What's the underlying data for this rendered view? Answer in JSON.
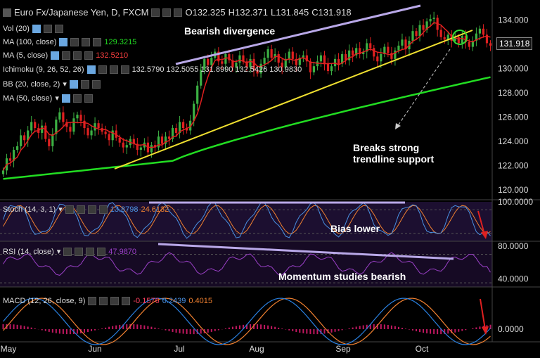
{
  "header": {
    "symbol": "Euro Fx/Japanese Yen, D, FXCM",
    "open": "O132.325",
    "high": "H132.371",
    "low": "L131.845",
    "close": "C131.918"
  },
  "legends": {
    "vol": "Vol (20)",
    "ma100": "MA (100, close)",
    "ma100_val": "129.3215",
    "ma5": "MA (5, close)",
    "ma5_val": "132.5210",
    "ichimoku": "Ichimoku (9, 26, 52, 26)",
    "ichimoku_vals": "132.5790 132.5055 131.8990 132.5426 130.9830",
    "bb": "BB (20, close, 2)",
    "ma50": "MA (50, close)",
    "stoch": "Stoch (14, 3, 1)",
    "stoch_k": "13.8798",
    "stoch_d": "24.6132",
    "rsi": "RSI (14, close)",
    "rsi_val": "47.9870",
    "macd": "MACD (12, 26, close, 9)",
    "macd_hist": "-0.1576",
    "macd_line": "0.2439",
    "macd_signal": "0.4015"
  },
  "annotations": {
    "divergence": "Bearish divergence",
    "breaks1": "Breaks strong",
    "breaks2": "trendline support",
    "bias": "Bias lower",
    "momentum": "Momentum studies bearish"
  },
  "price_label": "131.918",
  "colors": {
    "bull": "#3cb043",
    "bear": "#e02020",
    "ma5": "#e02020",
    "ma100": "#22dd22",
    "trendline": "#f0e030",
    "divergence": "#b9a8e8",
    "stoch_k": "#4a90e2",
    "stoch_d": "#f08030",
    "rsi": "#9b40c8",
    "macd": "#2a80e0",
    "signal": "#f08030",
    "hist": "#c01860"
  },
  "chart_data": {
    "type": "candlestick",
    "x_ticks": [
      "May",
      "Jun",
      "Jul",
      "Aug",
      "Sep",
      "Oct"
    ],
    "price_axis": {
      "ticks": [
        "134.000",
        "132.000",
        "130.000",
        "128.000",
        "126.000",
        "124.000",
        "122.000",
        "120.000"
      ],
      "ylim": [
        119.3,
        135.2
      ]
    },
    "close": [
      121.6,
      122.6,
      122.4,
      123.3,
      123.6,
      124.5,
      124.1,
      124.9,
      125.6,
      125.1,
      124.7,
      125.3,
      124.2,
      123.6,
      124.6,
      125.8,
      126.4,
      125.6,
      125.2,
      124.8,
      125.9,
      126.2,
      125.7,
      125.1,
      124.5,
      124.9,
      125.5,
      125.1,
      124.8,
      124.6,
      124.1,
      124.9,
      124.3,
      123.9,
      123.5,
      123.7,
      124.2,
      123.8,
      123.3,
      123.5,
      123.9,
      123.1,
      123.7,
      123.5,
      124.4,
      123.8,
      124.4,
      124.2,
      125.1,
      124.7,
      125.6,
      125.1,
      124.9,
      125.7,
      127.1,
      128.6,
      129.9,
      130.8,
      130.3,
      130.9,
      131.4,
      130.6,
      130.4,
      131.2,
      130.7,
      130.1,
      130.5,
      131.1,
      130.6,
      130.1,
      130.8,
      129.9,
      129.6,
      130.4,
      130.9,
      131.6,
      130.9,
      131.2,
      130.5,
      130.1,
      130.8,
      131.4,
      130.8,
      130.3,
      130.9,
      131.1,
      130.6,
      129.7,
      130.2,
      130.6,
      131.1,
      130.4,
      129.8,
      130.2,
      130.8,
      130.4,
      131.2,
      130.7,
      131.5,
      131.1,
      131.7,
      131.2,
      131.4,
      132.1,
      131.7,
      131.0,
      130.6,
      131.2,
      131.8,
      131.3,
      130.8,
      131.5,
      131.9,
      132.4,
      131.6,
      132.3,
      133.1,
      132.7,
      133.6,
      133.2,
      133.9,
      134.1,
      134.2,
      133.2,
      132.6,
      132.4,
      132.8,
      132.3,
      132.6,
      132.1,
      132.7,
      132.2,
      131.8,
      132.3,
      132.9,
      133.3,
      132.8,
      132.1,
      131.9
    ],
    "ma100": [
      120.9,
      122.4,
      129.3
    ],
    "stoch": {
      "k": 13.8798,
      "d": 24.6132,
      "ylim": [
        0,
        100
      ],
      "ticks": [
        "100.0000"
      ]
    },
    "rsi": {
      "value": 47.987,
      "ylim": [
        30,
        85
      ],
      "ticks": [
        "80.0000",
        "40.0000"
      ]
    },
    "macd": {
      "macd": 0.2439,
      "signal": 0.4015,
      "histogram": -0.1576,
      "ticks": [
        "0.0000"
      ]
    }
  }
}
